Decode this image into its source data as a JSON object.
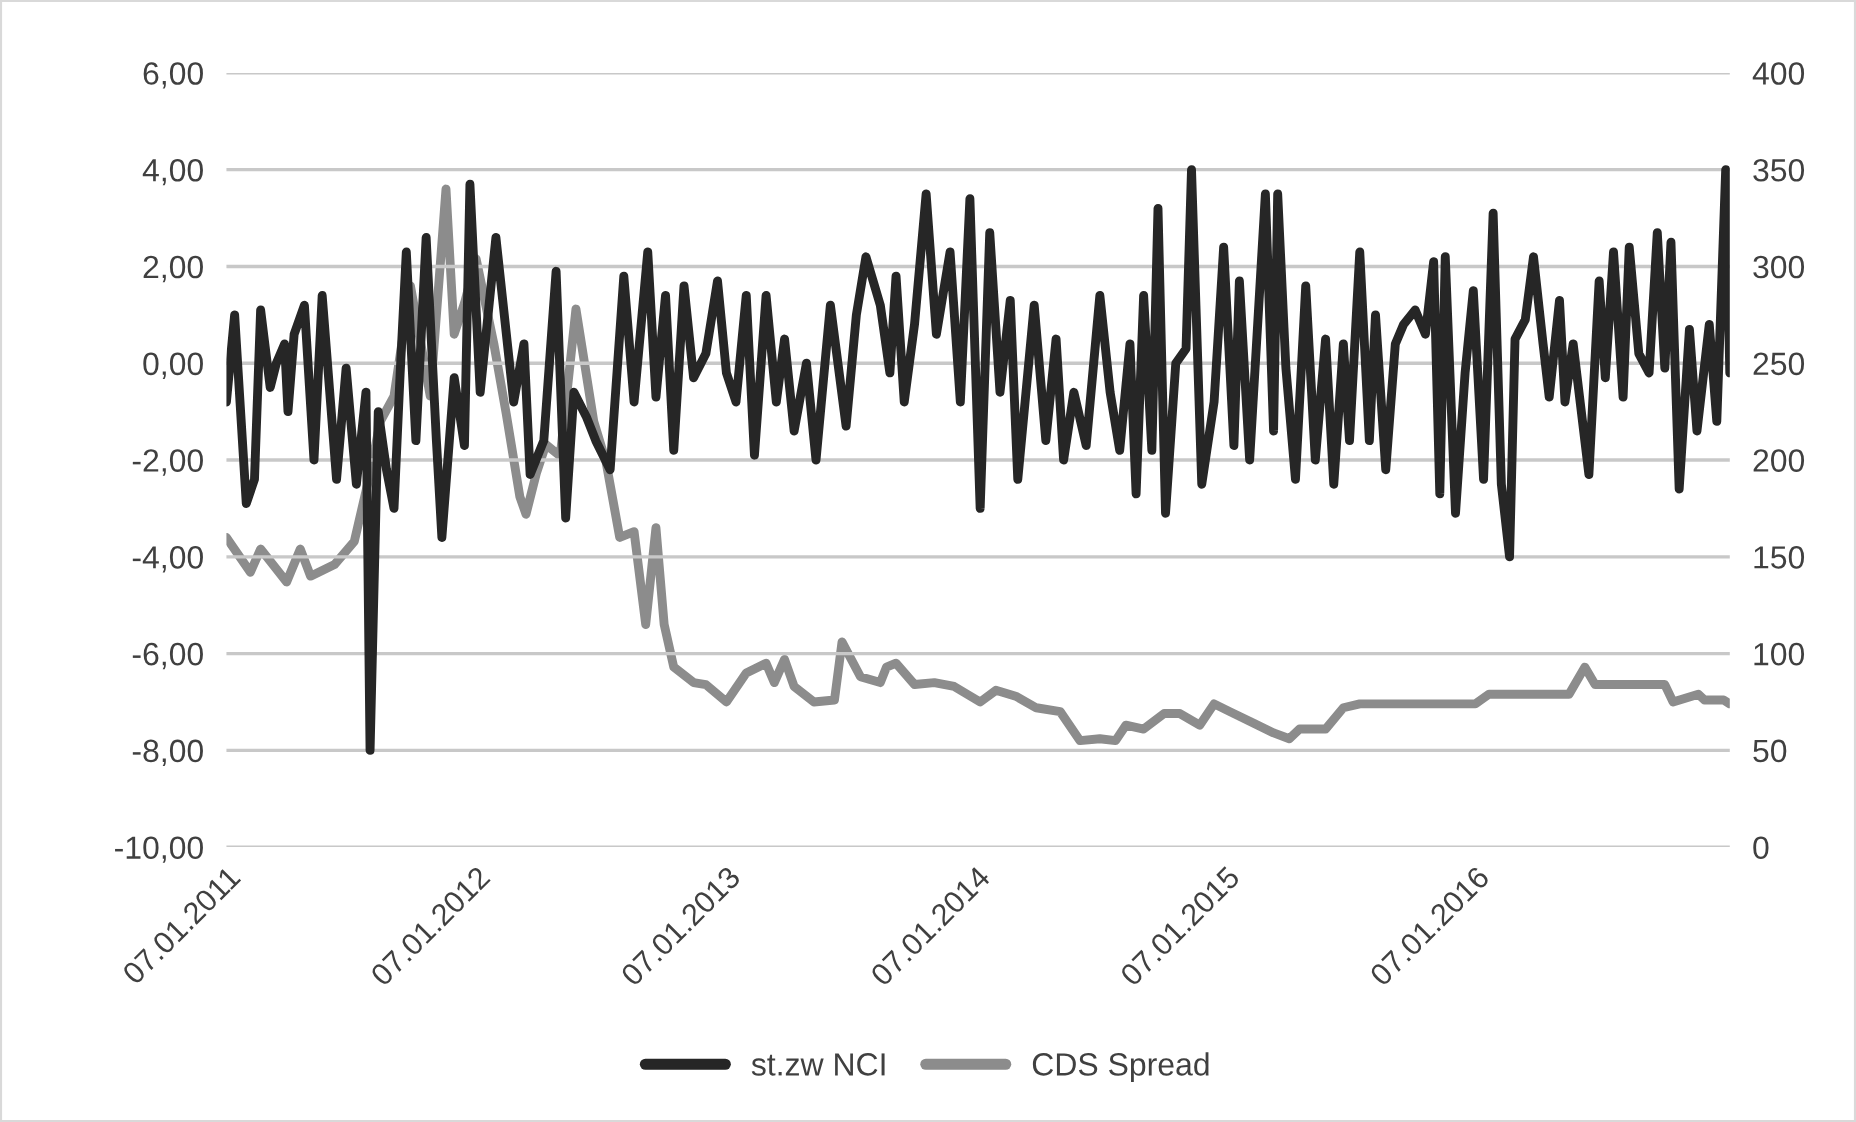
{
  "chart_data": {
    "type": "line",
    "xlim": [
      "2011-01-07",
      "2017-01-13"
    ],
    "xticks": [
      {
        "value": "2011-01-07",
        "label": "07.01.2011"
      },
      {
        "value": "2012-01-07",
        "label": "07.01.2012"
      },
      {
        "value": "2013-01-07",
        "label": "07.01.2013"
      },
      {
        "value": "2014-01-07",
        "label": "07.01.2014"
      },
      {
        "value": "2015-01-07",
        "label": "07.01.2015"
      },
      {
        "value": "2016-01-07",
        "label": "07.01.2016"
      }
    ],
    "ylim": [
      -10,
      6
    ],
    "yticks": [
      {
        "value": -10,
        "label": "-10,00"
      },
      {
        "value": -8,
        "label": "-8,00"
      },
      {
        "value": -6,
        "label": "-6,00"
      },
      {
        "value": -4,
        "label": "-4,00"
      },
      {
        "value": -2,
        "label": "-2,00"
      },
      {
        "value": 0,
        "label": "0,00"
      },
      {
        "value": 2,
        "label": "2,00"
      },
      {
        "value": 4,
        "label": "4,00"
      },
      {
        "value": 6,
        "label": "6,00"
      }
    ],
    "y2lim": [
      0,
      400
    ],
    "y2ticks": [
      0,
      50,
      100,
      150,
      200,
      250,
      300,
      350,
      400
    ],
    "grid": "y",
    "legend": "bottom",
    "series": [
      {
        "name": "st.zw NCI",
        "color": "#262626",
        "x": [
          "2011-01-07",
          "2011-01-19",
          "2011-02-05",
          "2011-02-17",
          "2011-02-26",
          "2011-03-12",
          "2011-03-21",
          "2011-04-02",
          "2011-04-07",
          "2011-04-16",
          "2011-05-01",
          "2011-05-15",
          "2011-05-27",
          "2011-06-17",
          "2011-07-01",
          "2011-07-16",
          "2011-07-30",
          "2011-08-05",
          "2011-08-17",
          "2011-08-29",
          "2011-09-09",
          "2011-09-18",
          "2011-09-27",
          "2011-10-11",
          "2011-10-26",
          "2011-11-10",
          "2011-11-18",
          "2011-12-06",
          "2011-12-21",
          "2011-12-29",
          "2012-01-13",
          "2012-02-05",
          "2012-03-02",
          "2012-03-17",
          "2012-03-26",
          "2012-04-15",
          "2012-05-03",
          "2012-05-17",
          "2012-05-29",
          "2012-06-16",
          "2012-06-30",
          "2012-07-21",
          "2012-08-10",
          "2012-08-25",
          "2012-09-14",
          "2012-09-26",
          "2012-10-10",
          "2012-10-22",
          "2012-11-06",
          "2012-11-20",
          "2012-12-08",
          "2012-12-25",
          "2013-01-07",
          "2013-01-21",
          "2013-02-05",
          "2013-02-17",
          "2013-03-06",
          "2013-03-21",
          "2013-04-02",
          "2013-04-16",
          "2013-05-04",
          "2013-05-18",
          "2013-06-08",
          "2013-07-01",
          "2013-07-16",
          "2013-07-30",
          "2013-08-20",
          "2013-09-03",
          "2013-09-12",
          "2013-09-24",
          "2013-10-09",
          "2013-10-26",
          "2013-11-10",
          "2013-11-30",
          "2013-12-15",
          "2013-12-29",
          "2014-01-13",
          "2014-01-27",
          "2014-02-11",
          "2014-02-26",
          "2014-03-09",
          "2014-04-02",
          "2014-04-19",
          "2014-05-04",
          "2014-05-15",
          "2014-05-30",
          "2014-06-17",
          "2014-07-07",
          "2014-07-22",
          "2014-08-05",
          "2014-08-20",
          "2014-08-29",
          "2014-09-09",
          "2014-09-21",
          "2014-09-30",
          "2014-10-11",
          "2014-10-26",
          "2014-11-10",
          "2014-11-18",
          "2014-12-03",
          "2014-12-21",
          "2015-01-04",
          "2015-01-19",
          "2015-01-27",
          "2015-02-11",
          "2015-03-06",
          "2015-03-18",
          "2015-03-24",
          "2015-04-05",
          "2015-04-19",
          "2015-05-04",
          "2015-05-18",
          "2015-06-02",
          "2015-06-14",
          "2015-06-28",
          "2015-07-07",
          "2015-07-22",
          "2015-08-05",
          "2015-08-14",
          "2015-08-29",
          "2015-09-12",
          "2015-09-24",
          "2015-10-11",
          "2015-10-26",
          "2015-11-07",
          "2015-11-16",
          "2015-11-24",
          "2015-12-09",
          "2015-12-23",
          "2016-01-04",
          "2016-01-19",
          "2016-02-02",
          "2016-02-14",
          "2016-02-26",
          "2016-03-05",
          "2016-03-20",
          "2016-04-01",
          "2016-04-15",
          "2016-04-24",
          "2016-05-09",
          "2016-05-17",
          "2016-05-29",
          "2016-06-21",
          "2016-07-06",
          "2016-07-15",
          "2016-07-27",
          "2016-08-10",
          "2016-08-19",
          "2016-09-02",
          "2016-09-17",
          "2016-09-29",
          "2016-10-10",
          "2016-10-19",
          "2016-10-31",
          "2016-11-15",
          "2016-11-26",
          "2016-12-14",
          "2016-12-25",
          "2017-01-07",
          "2017-01-13"
        ],
        "values": [
          -0.8,
          1.0,
          -2.9,
          -2.4,
          1.1,
          -0.5,
          0.0,
          0.4,
          -1.0,
          0.6,
          1.2,
          -2.0,
          1.4,
          -2.4,
          -0.1,
          -2.5,
          -0.6,
          -8.0,
          -1.0,
          -2.2,
          -3.0,
          -0.2,
          2.3,
          -1.6,
          2.6,
          -1.6,
          -3.6,
          -0.3,
          -1.7,
          3.7,
          -0.6,
          2.6,
          -0.8,
          0.4,
          -2.3,
          -1.6,
          1.9,
          -3.2,
          -0.6,
          -1.1,
          -1.6,
          -2.2,
          1.8,
          -0.8,
          2.3,
          -0.7,
          1.4,
          -1.8,
          1.6,
          -0.3,
          0.2,
          1.7,
          -0.2,
          -0.8,
          1.4,
          -1.9,
          1.4,
          -0.8,
          0.5,
          -1.4,
          0.0,
          -2.0,
          1.2,
          -1.3,
          1.0,
          2.2,
          1.2,
          -0.2,
          1.8,
          -0.8,
          0.8,
          3.5,
          0.6,
          2.3,
          -0.8,
          3.4,
          -3.0,
          2.7,
          -0.6,
          1.3,
          -2.4,
          1.2,
          -1.6,
          0.5,
          -2.0,
          -0.6,
          -1.7,
          1.4,
          -0.6,
          -1.8,
          0.4,
          -2.7,
          1.4,
          -1.8,
          3.2,
          -3.1,
          0.0,
          0.3,
          4.0,
          -2.5,
          -0.8,
          2.4,
          -1.7,
          1.7,
          -2.0,
          3.5,
          -1.4,
          3.5,
          -0.1,
          -2.4,
          1.6,
          -2.0,
          0.5,
          -2.5,
          0.4,
          -1.6,
          2.3,
          -1.6,
          1.0,
          -2.2,
          0.4,
          0.8,
          1.1,
          0.6,
          2.1,
          -2.7,
          2.2,
          -3.1,
          -0.2,
          1.5,
          -2.4,
          3.1,
          -2.5,
          -4.0,
          0.5,
          0.9,
          2.2,
          0.4,
          -0.7,
          1.3,
          -0.8,
          0.4,
          -2.3,
          1.7,
          -0.3,
          2.3,
          -0.7,
          2.4,
          0.2,
          -0.2,
          2.7,
          -0.1,
          2.5,
          -2.6,
          0.7,
          -1.4,
          0.8,
          -1.2,
          4.0,
          -0.2
        ]
      },
      {
        "name": "CDS Spread",
        "color": "#8c8c8c",
        "axis": "y2",
        "x": [
          "2011-01-07",
          "2011-02-11",
          "2011-02-26",
          "2011-04-05",
          "2011-04-25",
          "2011-05-10",
          "2011-06-14",
          "2011-07-13",
          "2011-08-05",
          "2011-08-20",
          "2011-09-09",
          "2011-10-03",
          "2011-11-01",
          "2011-11-24",
          "2011-12-06",
          "2011-12-21",
          "2012-01-07",
          "2012-02-02",
          "2012-02-20",
          "2012-03-11",
          "2012-03-20",
          "2012-04-04",
          "2012-04-18",
          "2012-05-09",
          "2012-06-01",
          "2012-06-27",
          "2012-07-15",
          "2012-08-04",
          "2012-08-25",
          "2012-09-11",
          "2012-09-26",
          "2012-10-08",
          "2012-10-22",
          "2012-11-20",
          "2012-12-08",
          "2013-01-07",
          "2013-02-05",
          "2013-03-06",
          "2013-03-18",
          "2013-04-02",
          "2013-04-16",
          "2013-05-15",
          "2013-06-14",
          "2013-06-25",
          "2013-07-22",
          "2013-08-20",
          "2013-08-29",
          "2013-09-12",
          "2013-10-09",
          "2013-11-07",
          "2013-12-06",
          "2014-01-13",
          "2014-02-05",
          "2014-03-06",
          "2014-04-05",
          "2014-05-10",
          "2014-06-08",
          "2014-07-07",
          "2014-07-30",
          "2014-08-14",
          "2014-09-09",
          "2014-10-09",
          "2014-11-01",
          "2014-11-30",
          "2014-12-21",
          "2015-01-13",
          "2015-02-17",
          "2015-03-18",
          "2015-04-10",
          "2015-04-25",
          "2015-06-02",
          "2015-06-28",
          "2015-07-22",
          "2016-01-07",
          "2016-01-27",
          "2016-05-23",
          "2016-06-15",
          "2016-06-30",
          "2016-10-10",
          "2016-10-22",
          "2016-11-28",
          "2016-12-07",
          "2017-01-04",
          "2017-01-13"
        ],
        "values": [
          160,
          142,
          154,
          137,
          154,
          140,
          146,
          158,
          193,
          220,
          233,
          290,
          233,
          340,
          265,
          281,
          304,
          260,
          224,
          181,
          172,
          193,
          208,
          202,
          278,
          220,
          199,
          160,
          163,
          115,
          165,
          115,
          93,
          85,
          84,
          75,
          90,
          95,
          85,
          97,
          83,
          75,
          76,
          106,
          88,
          85,
          93,
          95,
          84,
          85,
          83,
          75,
          81,
          78,
          72,
          70,
          55,
          56,
          55,
          63,
          61,
          69,
          69,
          63,
          74,
          70,
          64,
          59,
          56,
          61,
          61,
          72,
          74,
          74,
          79,
          79,
          93,
          84,
          84,
          75,
          79,
          76,
          76,
          74
        ]
      }
    ]
  }
}
